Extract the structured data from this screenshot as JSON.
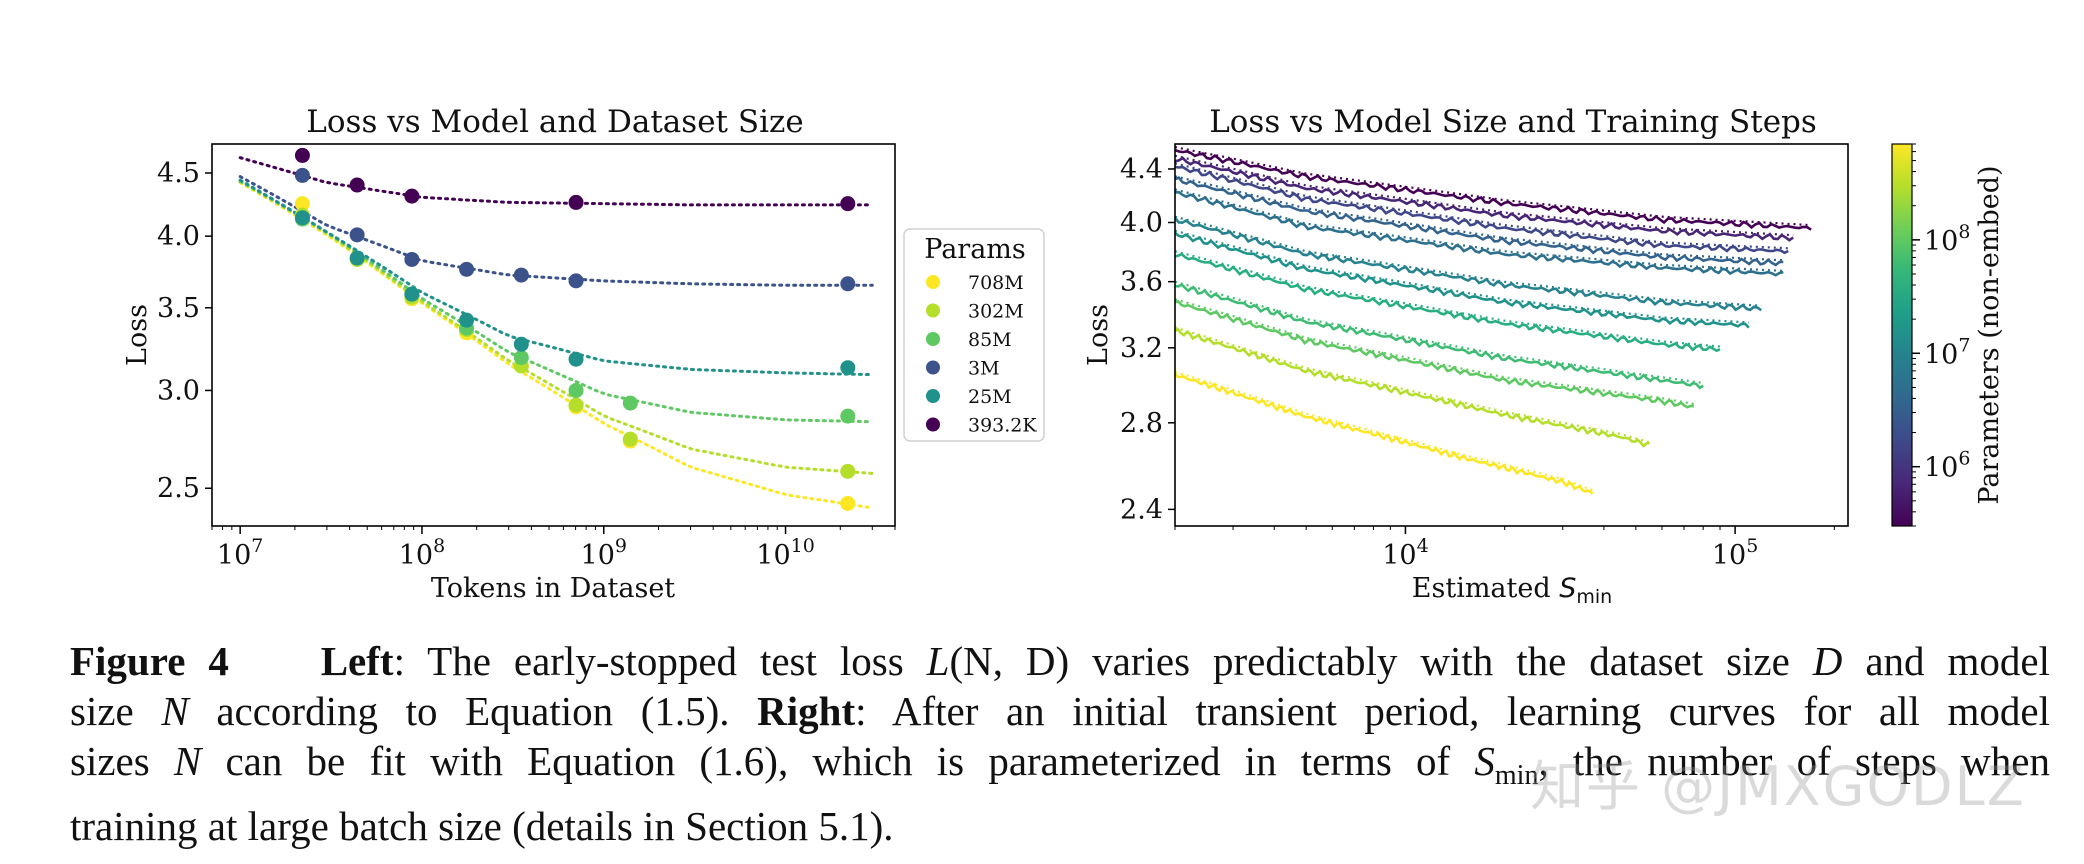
{
  "chart_data": [
    {
      "type": "scatter",
      "title": "Loss vs Model and Dataset Size",
      "xlabel": "Tokens in Dataset",
      "ylabel": "Loss",
      "xscale": "log",
      "yscale": "log",
      "xlim": [
        7000000,
        40000000000
      ],
      "ylim": [
        2.33,
        4.75
      ],
      "xticks": [
        {
          "value": 10000000,
          "base": "10",
          "exp": "7"
        },
        {
          "value": 100000000,
          "base": "10",
          "exp": "8"
        },
        {
          "value": 1000000000,
          "base": "10",
          "exp": "9"
        },
        {
          "value": 10000000000,
          "base": "10",
          "exp": "10"
        }
      ],
      "yticks": [
        {
          "value": 4.5,
          "label": "4.5"
        },
        {
          "value": 4.0,
          "label": "4.0"
        },
        {
          "value": 3.5,
          "label": "3.5"
        },
        {
          "value": 3.0,
          "label": "3.0"
        },
        {
          "value": 2.5,
          "label": "2.5"
        }
      ],
      "grid": false,
      "legend": {
        "title": "Params",
        "placement": "right-outside",
        "entries": [
          {
            "label": "708M",
            "color": "#fde725"
          },
          {
            "label": "302M",
            "color": "#b5de2b"
          },
          {
            "label": "85M",
            "color": "#5ec962"
          },
          {
            "label": "3M",
            "color": "#3b528b"
          },
          {
            "label": "25M",
            "color": "#21918c"
          },
          {
            "label": "393.2K",
            "color": "#440154"
          }
        ]
      },
      "series": [
        {
          "name": "708M",
          "color": "#fde725",
          "points": [
            [
              22000000,
              4.25
            ],
            [
              88000000,
              3.56
            ],
            [
              176000000,
              3.34
            ],
            [
              352000000,
              3.14
            ],
            [
              704000000,
              2.91
            ],
            [
              1400000000,
              2.73
            ],
            [
              22000000000,
              2.43
            ]
          ],
          "fit": [
            [
              10000000,
              4.42
            ],
            [
              30000000,
              4.01
            ],
            [
              100000000,
              3.53
            ],
            [
              300000000,
              3.15
            ],
            [
              1000000000,
              2.82
            ],
            [
              3000000000,
              2.6
            ],
            [
              10000000000,
              2.47
            ],
            [
              30000000000,
              2.41
            ]
          ]
        },
        {
          "name": "302M",
          "color": "#b5de2b",
          "points": [
            [
              22000000,
              4.16
            ],
            [
              44000000,
              3.83
            ],
            [
              88000000,
              3.57
            ],
            [
              176000000,
              3.36
            ],
            [
              352000000,
              3.14
            ],
            [
              704000000,
              2.92
            ],
            [
              1400000000,
              2.74
            ],
            [
              22000000000,
              2.58
            ]
          ],
          "fit": [
            [
              10000000,
              4.43
            ],
            [
              30000000,
              4.02
            ],
            [
              100000000,
              3.54
            ],
            [
              300000000,
              3.17
            ],
            [
              1000000000,
              2.86
            ],
            [
              3000000000,
              2.69
            ],
            [
              10000000000,
              2.6
            ],
            [
              30000000000,
              2.57
            ]
          ]
        },
        {
          "name": "85M",
          "color": "#5ec962",
          "points": [
            [
              22000000,
              4.13
            ],
            [
              88000000,
              3.59
            ],
            [
              176000000,
              3.37
            ],
            [
              352000000,
              3.19
            ],
            [
              704000000,
              3.0
            ],
            [
              1400000000,
              2.93
            ],
            [
              22000000000,
              2.86
            ]
          ],
          "fit": [
            [
              10000000,
              4.43
            ],
            [
              30000000,
              4.03
            ],
            [
              100000000,
              3.56
            ],
            [
              300000000,
              3.22
            ],
            [
              1000000000,
              2.98
            ],
            [
              3000000000,
              2.88
            ],
            [
              10000000000,
              2.84
            ],
            [
              30000000000,
              2.83
            ]
          ]
        },
        {
          "name": "3M",
          "color": "#3b528b",
          "points": [
            [
              22000000,
              4.48
            ],
            [
              44000000,
              4.01
            ],
            [
              88000000,
              3.83
            ],
            [
              176000000,
              3.76
            ],
            [
              352000000,
              3.72
            ],
            [
              704000000,
              3.68
            ],
            [
              22000000000,
              3.66
            ]
          ],
          "fit": [
            [
              10000000,
              4.47
            ],
            [
              30000000,
              4.08
            ],
            [
              100000000,
              3.82
            ],
            [
              300000000,
              3.72
            ],
            [
              1000000000,
              3.68
            ],
            [
              3000000000,
              3.66
            ],
            [
              10000000000,
              3.65
            ],
            [
              30000000000,
              3.65
            ]
          ]
        },
        {
          "name": "25M",
          "color": "#21918c",
          "points": [
            [
              22000000,
              4.14
            ],
            [
              44000000,
              3.84
            ],
            [
              88000000,
              3.59
            ],
            [
              176000000,
              3.42
            ],
            [
              352000000,
              3.27
            ],
            [
              704000000,
              3.18
            ],
            [
              22000000000,
              3.13
            ]
          ],
          "fit": [
            [
              10000000,
              4.44
            ],
            [
              30000000,
              4.03
            ],
            [
              100000000,
              3.6
            ],
            [
              300000000,
              3.32
            ],
            [
              1000000000,
              3.17
            ],
            [
              3000000000,
              3.12
            ],
            [
              10000000000,
              3.1
            ],
            [
              30000000000,
              3.09
            ]
          ]
        },
        {
          "name": "393.2K",
          "color": "#440154",
          "points": [
            [
              22000000,
              4.65
            ],
            [
              44000000,
              4.4
            ],
            [
              88000000,
              4.31
            ],
            [
              704000000,
              4.26
            ],
            [
              22000000000,
              4.25
            ]
          ],
          "fit": [
            [
              10000000,
              4.63
            ],
            [
              30000000,
              4.42
            ],
            [
              100000000,
              4.3
            ],
            [
              300000000,
              4.26
            ],
            [
              1000000000,
              4.25
            ],
            [
              3000000000,
              4.24
            ],
            [
              10000000000,
              4.24
            ],
            [
              30000000000,
              4.24
            ]
          ]
        }
      ]
    },
    {
      "type": "line",
      "title": "Loss vs Model Size and Training Steps",
      "xlabel": "Estimated ",
      "xlabel_math": "S",
      "xlabel_sub": "min",
      "ylabel": "Loss",
      "xscale": "log",
      "yscale": "log",
      "xlim": [
        2000,
        220000
      ],
      "ylim": [
        2.33,
        4.6
      ],
      "xticks": [
        {
          "value": 10000,
          "base": "10",
          "exp": "4"
        },
        {
          "value": 100000,
          "base": "10",
          "exp": "5"
        }
      ],
      "yticks": [
        {
          "value": 4.4,
          "label": "4.4"
        },
        {
          "value": 4.0,
          "label": "4.0"
        },
        {
          "value": 3.6,
          "label": "3.6"
        },
        {
          "value": 3.2,
          "label": "3.2"
        },
        {
          "value": 2.8,
          "label": "2.8"
        },
        {
          "value": 2.4,
          "label": "2.4"
        }
      ],
      "grid": false,
      "colorbar": {
        "label": "Parameters (non-embed)",
        "scale": "log",
        "range": [
          300000,
          700000000
        ],
        "ticks": [
          {
            "value": 1000000,
            "base": "10",
            "exp": "6"
          },
          {
            "value": 10000000,
            "base": "10",
            "exp": "7"
          },
          {
            "value": 100000000,
            "base": "10",
            "exp": "8"
          }
        ],
        "colormap": [
          "#440154",
          "#482878",
          "#3e4989",
          "#31688e",
          "#26828e",
          "#1f9e89",
          "#35b779",
          "#6ece58",
          "#b5de2b",
          "#fde725"
        ]
      },
      "series": [
        {
          "params": 400000,
          "color": "#440154",
          "x": [
            2000,
            5000,
            20000,
            60000,
            170000
          ],
          "y": [
            4.55,
            4.34,
            4.14,
            4.02,
            3.96
          ]
        },
        {
          "params": 800000,
          "color": "#482575",
          "x": [
            2000,
            5000,
            20000,
            60000,
            150000
          ],
          "y": [
            4.48,
            4.25,
            4.05,
            3.94,
            3.89
          ]
        },
        {
          "params": 1500000,
          "color": "#3f4788",
          "x": [
            2000,
            5000,
            20000,
            60000,
            145000
          ],
          "y": [
            4.42,
            4.17,
            3.96,
            3.84,
            3.8
          ]
        },
        {
          "params": 3000000,
          "color": "#33638d",
          "x": [
            2000,
            5000,
            20000,
            60000,
            140000
          ],
          "y": [
            4.32,
            4.08,
            3.87,
            3.76,
            3.72
          ]
        },
        {
          "params": 6000000,
          "color": "#2d708e",
          "x": [
            2000,
            5000,
            20000,
            60000,
            140000
          ],
          "y": [
            4.22,
            3.97,
            3.78,
            3.69,
            3.65
          ]
        },
        {
          "params": 10000000,
          "color": "#26828e",
          "x": [
            2000,
            5000,
            20000,
            60000,
            120000
          ],
          "y": [
            4.02,
            3.78,
            3.58,
            3.47,
            3.43
          ]
        },
        {
          "params": 19000000,
          "color": "#20928c",
          "x": [
            2000,
            5000,
            20000,
            60000,
            110000
          ],
          "y": [
            3.92,
            3.68,
            3.47,
            3.36,
            3.33
          ]
        },
        {
          "params": 42000000,
          "color": "#28ae80",
          "x": [
            2000,
            5000,
            20000,
            60000,
            90000
          ],
          "y": [
            3.78,
            3.55,
            3.34,
            3.22,
            3.19
          ]
        },
        {
          "params": 85000000,
          "color": "#3fbc73",
          "x": [
            2000,
            5000,
            20000,
            60000,
            80000
          ],
          "y": [
            3.58,
            3.35,
            3.14,
            3.02,
            2.99
          ]
        },
        {
          "params": 150000000,
          "color": "#5ec962",
          "x": [
            2000,
            5000,
            20000,
            60000,
            75000
          ],
          "y": [
            3.47,
            3.24,
            3.02,
            2.91,
            2.88
          ]
        },
        {
          "params": 302000000,
          "color": "#b5de2b",
          "x": [
            2000,
            5000,
            20000,
            45000,
            55000
          ],
          "y": [
            3.3,
            3.07,
            2.84,
            2.73,
            2.69
          ]
        },
        {
          "params": 708000000,
          "color": "#fde725",
          "x": [
            2000,
            5000,
            15000,
            30000,
            37000
          ],
          "y": [
            3.05,
            2.83,
            2.63,
            2.52,
            2.47
          ]
        }
      ]
    }
  ],
  "caption": {
    "fig_label": "Figure 4",
    "left_label": "Left",
    "left_text_1": ": The early-stopped test loss ",
    "math_L": "L",
    "math_args": "(N, D)",
    "left_text_2": " varies predictably with the dataset size ",
    "math_D": "D",
    "left_text_3": " and model",
    "line2_a": "size ",
    "math_N": "N",
    "line2_b": " according to Equation (1.5). ",
    "right_label": "Right",
    "line2_c": ": After an initial transient period, learning curves for all model",
    "line3_a": "sizes ",
    "line3_b": " can be fit with Equation (1.6), which is parameterized in terms of ",
    "math_S": "S",
    "math_S_sub": "min",
    "line3_c": ", the number of steps when",
    "line4": "training at large batch size (details in Section 5.1)."
  },
  "watermark": "知乎 @JMXGODLZ"
}
